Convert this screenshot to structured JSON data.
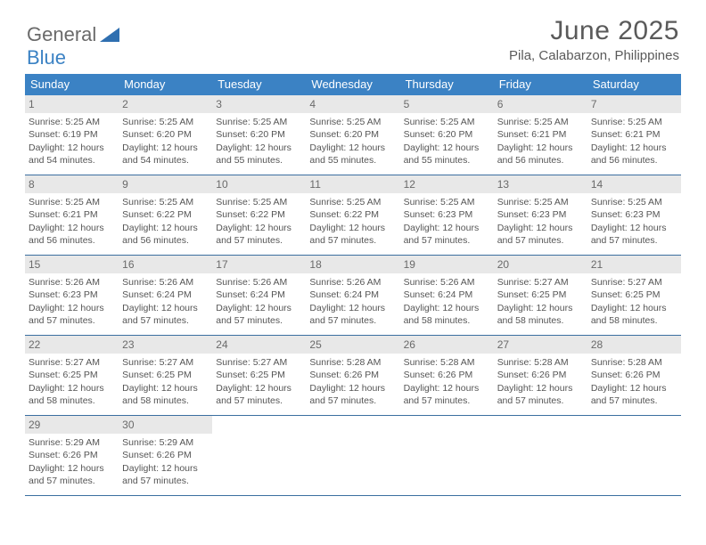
{
  "logo": {
    "word1": "General",
    "word2": "Blue",
    "shape_color": "#2f6fb0"
  },
  "title": "June 2025",
  "location": "Pila, Calabarzon, Philippines",
  "colors": {
    "header_bg": "#3b82c4",
    "header_text": "#ffffff",
    "daynum_bg": "#e8e8e8",
    "row_border": "#3b6fa0",
    "body_text": "#555555"
  },
  "weekdays": [
    "Sunday",
    "Monday",
    "Tuesday",
    "Wednesday",
    "Thursday",
    "Friday",
    "Saturday"
  ],
  "weeks": [
    [
      {
        "n": 1,
        "sr": "5:25 AM",
        "ss": "6:19 PM",
        "dl": "12 hours and 54 minutes."
      },
      {
        "n": 2,
        "sr": "5:25 AM",
        "ss": "6:20 PM",
        "dl": "12 hours and 54 minutes."
      },
      {
        "n": 3,
        "sr": "5:25 AM",
        "ss": "6:20 PM",
        "dl": "12 hours and 55 minutes."
      },
      {
        "n": 4,
        "sr": "5:25 AM",
        "ss": "6:20 PM",
        "dl": "12 hours and 55 minutes."
      },
      {
        "n": 5,
        "sr": "5:25 AM",
        "ss": "6:20 PM",
        "dl": "12 hours and 55 minutes."
      },
      {
        "n": 6,
        "sr": "5:25 AM",
        "ss": "6:21 PM",
        "dl": "12 hours and 56 minutes."
      },
      {
        "n": 7,
        "sr": "5:25 AM",
        "ss": "6:21 PM",
        "dl": "12 hours and 56 minutes."
      }
    ],
    [
      {
        "n": 8,
        "sr": "5:25 AM",
        "ss": "6:21 PM",
        "dl": "12 hours and 56 minutes."
      },
      {
        "n": 9,
        "sr": "5:25 AM",
        "ss": "6:22 PM",
        "dl": "12 hours and 56 minutes."
      },
      {
        "n": 10,
        "sr": "5:25 AM",
        "ss": "6:22 PM",
        "dl": "12 hours and 57 minutes."
      },
      {
        "n": 11,
        "sr": "5:25 AM",
        "ss": "6:22 PM",
        "dl": "12 hours and 57 minutes."
      },
      {
        "n": 12,
        "sr": "5:25 AM",
        "ss": "6:23 PM",
        "dl": "12 hours and 57 minutes."
      },
      {
        "n": 13,
        "sr": "5:25 AM",
        "ss": "6:23 PM",
        "dl": "12 hours and 57 minutes."
      },
      {
        "n": 14,
        "sr": "5:25 AM",
        "ss": "6:23 PM",
        "dl": "12 hours and 57 minutes."
      }
    ],
    [
      {
        "n": 15,
        "sr": "5:26 AM",
        "ss": "6:23 PM",
        "dl": "12 hours and 57 minutes."
      },
      {
        "n": 16,
        "sr": "5:26 AM",
        "ss": "6:24 PM",
        "dl": "12 hours and 57 minutes."
      },
      {
        "n": 17,
        "sr": "5:26 AM",
        "ss": "6:24 PM",
        "dl": "12 hours and 57 minutes."
      },
      {
        "n": 18,
        "sr": "5:26 AM",
        "ss": "6:24 PM",
        "dl": "12 hours and 57 minutes."
      },
      {
        "n": 19,
        "sr": "5:26 AM",
        "ss": "6:24 PM",
        "dl": "12 hours and 58 minutes."
      },
      {
        "n": 20,
        "sr": "5:27 AM",
        "ss": "6:25 PM",
        "dl": "12 hours and 58 minutes."
      },
      {
        "n": 21,
        "sr": "5:27 AM",
        "ss": "6:25 PM",
        "dl": "12 hours and 58 minutes."
      }
    ],
    [
      {
        "n": 22,
        "sr": "5:27 AM",
        "ss": "6:25 PM",
        "dl": "12 hours and 58 minutes."
      },
      {
        "n": 23,
        "sr": "5:27 AM",
        "ss": "6:25 PM",
        "dl": "12 hours and 58 minutes."
      },
      {
        "n": 24,
        "sr": "5:27 AM",
        "ss": "6:25 PM",
        "dl": "12 hours and 57 minutes."
      },
      {
        "n": 25,
        "sr": "5:28 AM",
        "ss": "6:26 PM",
        "dl": "12 hours and 57 minutes."
      },
      {
        "n": 26,
        "sr": "5:28 AM",
        "ss": "6:26 PM",
        "dl": "12 hours and 57 minutes."
      },
      {
        "n": 27,
        "sr": "5:28 AM",
        "ss": "6:26 PM",
        "dl": "12 hours and 57 minutes."
      },
      {
        "n": 28,
        "sr": "5:28 AM",
        "ss": "6:26 PM",
        "dl": "12 hours and 57 minutes."
      }
    ],
    [
      {
        "n": 29,
        "sr": "5:29 AM",
        "ss": "6:26 PM",
        "dl": "12 hours and 57 minutes."
      },
      {
        "n": 30,
        "sr": "5:29 AM",
        "ss": "6:26 PM",
        "dl": "12 hours and 57 minutes."
      },
      null,
      null,
      null,
      null,
      null
    ]
  ],
  "labels": {
    "sunrise": "Sunrise:",
    "sunset": "Sunset:",
    "daylight": "Daylight:"
  }
}
